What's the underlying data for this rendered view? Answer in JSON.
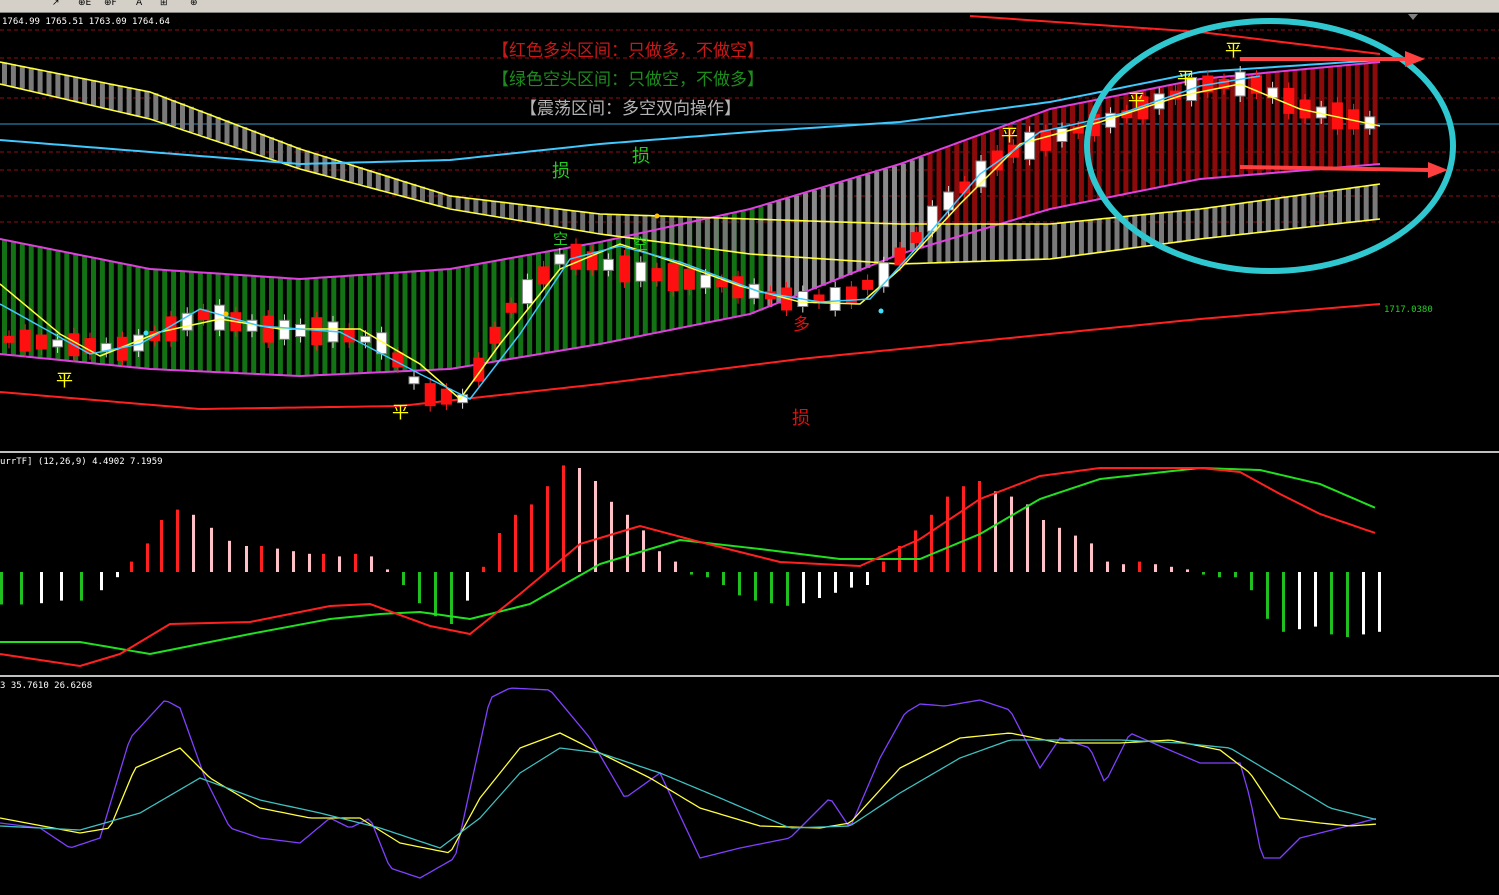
{
  "toolbar": {
    "items": [
      "↗",
      "⊕E",
      "⊕F",
      "A",
      "⊞",
      "⊕"
    ]
  },
  "main": {
    "ohlc_label": "1764.99 1765.51 1763.09 1764.64",
    "price_label": "1717.0380",
    "legend": [
      {
        "text": "【红色多头区间：只做多，不做空】",
        "color": "#c81818"
      },
      {
        "text": "【绿色空头区间：只做空，不做多】",
        "color": "#1c8c1c"
      },
      {
        "text": "【震荡区间：多空双向操作】",
        "color": "#b4b4b4"
      }
    ],
    "marks": [
      {
        "text": "平",
        "color": "#ffff00"
      },
      {
        "text": "平",
        "color": "#ffff00"
      },
      {
        "text": "平",
        "color": "#ffff00"
      },
      {
        "text": "平",
        "color": "#ffff00"
      },
      {
        "text": "平",
        "color": "#ffff00"
      },
      {
        "text": "平",
        "color": "#ffff00"
      },
      {
        "text": "损",
        "color": "#20d020"
      },
      {
        "text": "损",
        "color": "#20d020"
      },
      {
        "text": "损",
        "color": "#e01010"
      },
      {
        "text": "空",
        "color": "#20d020"
      },
      {
        "text": "空",
        "color": "#20d020"
      },
      {
        "text": "多",
        "color": "#e01010"
      }
    ]
  },
  "macd": {
    "label": "urrTF] (12,26,9) 4.4902 7.1959"
  },
  "stoch": {
    "label": "3 35.7610 26.6268"
  },
  "chart_data": {
    "type": "candlestick",
    "panes": [
      "price",
      "macd",
      "stochastic"
    ],
    "candles_bias": [
      "bearish",
      "bearish",
      "bearish",
      "bullish",
      "bearish",
      "bearish",
      "bullish",
      "bearish",
      "bullish",
      "bearish",
      "bearish",
      "bullish",
      "bearish",
      "bullish",
      "bearish",
      "bullish",
      "bearish",
      "bullish",
      "bullish",
      "bearish",
      "bullish",
      "bearish",
      "bullish",
      "bullish",
      "bearish",
      "bullish",
      "bearish",
      "bearish",
      "bullish",
      "bearish",
      "bearish",
      "bearish",
      "bullish",
      "bearish",
      "bullish",
      "bearish",
      "bearish",
      "bullish",
      "bearish",
      "bullish",
      "bearish",
      "bearish",
      "bearish",
      "bullish",
      "bearish",
      "bearish",
      "bullish",
      "bearish",
      "bearish",
      "bullish",
      "bearish",
      "bullish",
      "bearish",
      "bearish",
      "bullish",
      "bearish",
      "bearish",
      "bullish",
      "bullish",
      "bearish",
      "bullish",
      "bearish",
      "bearish",
      "bullish",
      "bearish",
      "bullish",
      "bearish",
      "bearish",
      "bullish",
      "bearish",
      "bearish",
      "bullish",
      "bearish",
      "bullish",
      "bearish",
      "bearish",
      "bullish",
      "bearish",
      "bullish",
      "bearish",
      "bearish",
      "bullish",
      "bearish",
      "bearish",
      "bullish"
    ],
    "price_tag": 1717.038,
    "macd_values": [
      4.4902,
      7.1959
    ],
    "stochastic_values": [
      35.761,
      26.6268
    ]
  }
}
